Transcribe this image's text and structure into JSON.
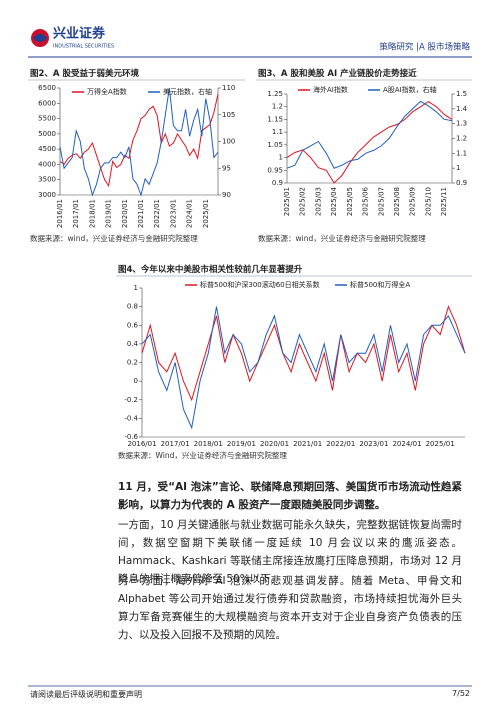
{
  "header": {
    "logo_name": "兴业证券",
    "logo_en": "INDUSTRIAL SECURITIES",
    "section": "策略研究 |A 股市场策略"
  },
  "chart_data": [
    {
      "type": "line",
      "title": "图2、A 股受益于弱美元环境",
      "source": "数据来源：wind，兴业证券经济与金融研究院整理",
      "categories": [
        "2016/01",
        null,
        null,
        null,
        "2017/01",
        null,
        null,
        null,
        "2018/01",
        null,
        null,
        null,
        "2019/01",
        null,
        null,
        null,
        "2020/01",
        null,
        null,
        null,
        "2021/01",
        null,
        null,
        null,
        "2022/01",
        null,
        null,
        null,
        "2023/01",
        null,
        null,
        null,
        "2024/01",
        null,
        null,
        null,
        "2025/01",
        null,
        null,
        null
      ],
      "series": [
        {
          "name": "万得全A指数",
          "color": "#e0151f",
          "values": [
            4100,
            4000,
            4200,
            4300,
            4350,
            4200,
            4400,
            4500,
            4700,
            4300,
            3900,
            3500,
            3300,
            4100,
            3900,
            4000,
            4300,
            4200,
            4800,
            5100,
            5500,
            5600,
            5800,
            5900,
            5600,
            4700,
            5000,
            4600,
            4700,
            5000,
            4800,
            4600,
            4300,
            4500,
            4200,
            5100,
            5200,
            5300,
            5700,
            6300
          ]
        },
        {
          "name": "美元指数，右轴",
          "color": "#1f5fbf",
          "axis": "y2",
          "values": [
            99,
            95,
            96,
            97,
            102,
            100,
            95,
            93,
            90,
            92,
            95,
            96,
            96,
            97,
            97,
            98,
            97,
            99,
            93,
            92,
            90,
            93,
            92,
            94,
            96,
            100,
            105,
            110,
            103,
            102,
            102,
            106,
            101,
            104,
            106,
            101,
            108,
            104,
            97,
            98
          ]
        }
      ],
      "ylim": [
        3000,
        6500
      ],
      "yticks": [
        3000,
        3500,
        4000,
        4500,
        5000,
        5500,
        6000,
        6500
      ],
      "y2lim": [
        90,
        110
      ],
      "y2ticks": [
        90,
        95,
        100,
        105,
        110
      ]
    },
    {
      "type": "line",
      "title": "图3、A 股和美股 AI 产业链股价走势接近",
      "source": "数据来源：wind，兴业证券经济与金融研究院整理",
      "categories": [
        "2025/01",
        null,
        "2025/02",
        null,
        "2025/03",
        null,
        "2025/04",
        null,
        "2025/05",
        null,
        "2025/06",
        null,
        "2025/07",
        null,
        "2025/08",
        null,
        "2025/09",
        null,
        "2025/10",
        null,
        "2025/11",
        null
      ],
      "series": [
        {
          "name": "海外AI指数",
          "color": "#e0151f",
          "values": [
            1.0,
            1.02,
            1.03,
            1.0,
            0.96,
            0.95,
            0.9,
            0.93,
            0.98,
            1.02,
            1.05,
            1.08,
            1.1,
            1.12,
            1.13,
            1.15,
            1.18,
            1.2,
            1.22,
            1.2,
            1.17,
            1.15
          ]
        },
        {
          "name": "A股AI指数，右轴",
          "color": "#1f5fbf",
          "axis": "y2",
          "values": [
            1.0,
            1.02,
            1.12,
            1.15,
            1.18,
            1.1,
            1.0,
            1.02,
            1.05,
            1.06,
            1.1,
            1.12,
            1.15,
            1.2,
            1.28,
            1.35,
            1.4,
            1.45,
            1.42,
            1.38,
            1.33,
            1.32
          ]
        }
      ],
      "ylim": [
        0.9,
        1.25
      ],
      "yticks": [
        0.9,
        0.95,
        1,
        1.05,
        1.1,
        1.15,
        1.2,
        1.25
      ],
      "y2lim": [
        0.9,
        1.5
      ],
      "y2ticks": [
        0.9,
        1,
        1.1,
        1.2,
        1.3,
        1.4,
        1.5
      ]
    },
    {
      "type": "line",
      "title": "图4、今年以来中美股市相关性较前几年显著提升",
      "source": "数据来源：Wind，兴业证券经济与金融研究院整理",
      "categories": [
        "2016/01",
        null,
        null,
        null,
        "2017/01",
        null,
        null,
        null,
        "2018/01",
        null,
        null,
        null,
        "2019/01",
        null,
        null,
        null,
        "2020/01",
        null,
        null,
        null,
        "2021/01",
        null,
        null,
        null,
        "2022/01",
        null,
        null,
        null,
        "2023/01",
        null,
        null,
        null,
        "2024/01",
        null,
        null,
        null,
        "2025/01",
        null,
        null,
        null
      ],
      "series": [
        {
          "name": "标普500和沪深300滚动60日相关系数",
          "color": "#e0151f",
          "values": [
            0.3,
            0.6,
            0.2,
            0.1,
            0.3,
            0.0,
            -0.2,
            0.1,
            0.4,
            0.7,
            0.2,
            0.5,
            0.3,
            0.0,
            0.2,
            0.4,
            0.6,
            0.3,
            0.1,
            0.4,
            0.2,
            0.0,
            0.3,
            -0.1,
            0.5,
            0.1,
            0.3,
            0.2,
            0.4,
            0.0,
            0.5,
            0.1,
            0.3,
            -0.1,
            0.4,
            0.6,
            0.5,
            0.8,
            0.6,
            0.3
          ]
        },
        {
          "name": "标普500和万得全A",
          "color": "#1f5fbf",
          "values": [
            0.4,
            0.5,
            0.1,
            -0.1,
            0.2,
            -0.3,
            -0.5,
            0.0,
            0.3,
            0.8,
            0.3,
            0.5,
            0.4,
            0.1,
            0.2,
            0.5,
            0.7,
            0.3,
            0.2,
            0.5,
            0.3,
            0.1,
            0.4,
            0.0,
            0.5,
            0.2,
            0.3,
            0.3,
            0.5,
            0.1,
            0.6,
            0.2,
            0.4,
            0.0,
            0.5,
            0.6,
            0.6,
            0.7,
            0.5,
            0.3
          ]
        }
      ],
      "ylim": [
        -0.6,
        1
      ],
      "yticks": [
        -0.6,
        -0.4,
        -0.2,
        0,
        0.2,
        0.4,
        0.6,
        0.8,
        1
      ]
    }
  ],
  "body": {
    "lead": "11 月，受“AI 泡沫”言论、联储降息预期回落、美国货币市场流动性趋紧影响，以算力为代表的 A 股资产一度跟随美股同步调整。",
    "paragraphs": [
      "一方面，10 月关键通胀与就业数据可能永久缺失，完整数据链恢复尚需时间，数据空窗期下美联储一度延续 10 月会议以来的鹰派姿态。Hammack、Kashkari 等联储主席接连放鹰打压降息预期，市场对 12 月降息的押注概率曾降至 50%以下。",
      "另一方面，海外对“AI 泡沫”的悲观基调发酵。随着 Meta、甲骨文和 Alphabet 等公司开始通过发行债券和贷款融资，市场持续担忧海外巨头算力军备竞赛催生的大规模融资与资本开支对于企业自身资产负债表的压力、以及投入回报不及预期的风险。"
    ]
  },
  "footer": {
    "disclaimer": "请阅读最后评级说明和重要声明",
    "page": "7/52"
  }
}
